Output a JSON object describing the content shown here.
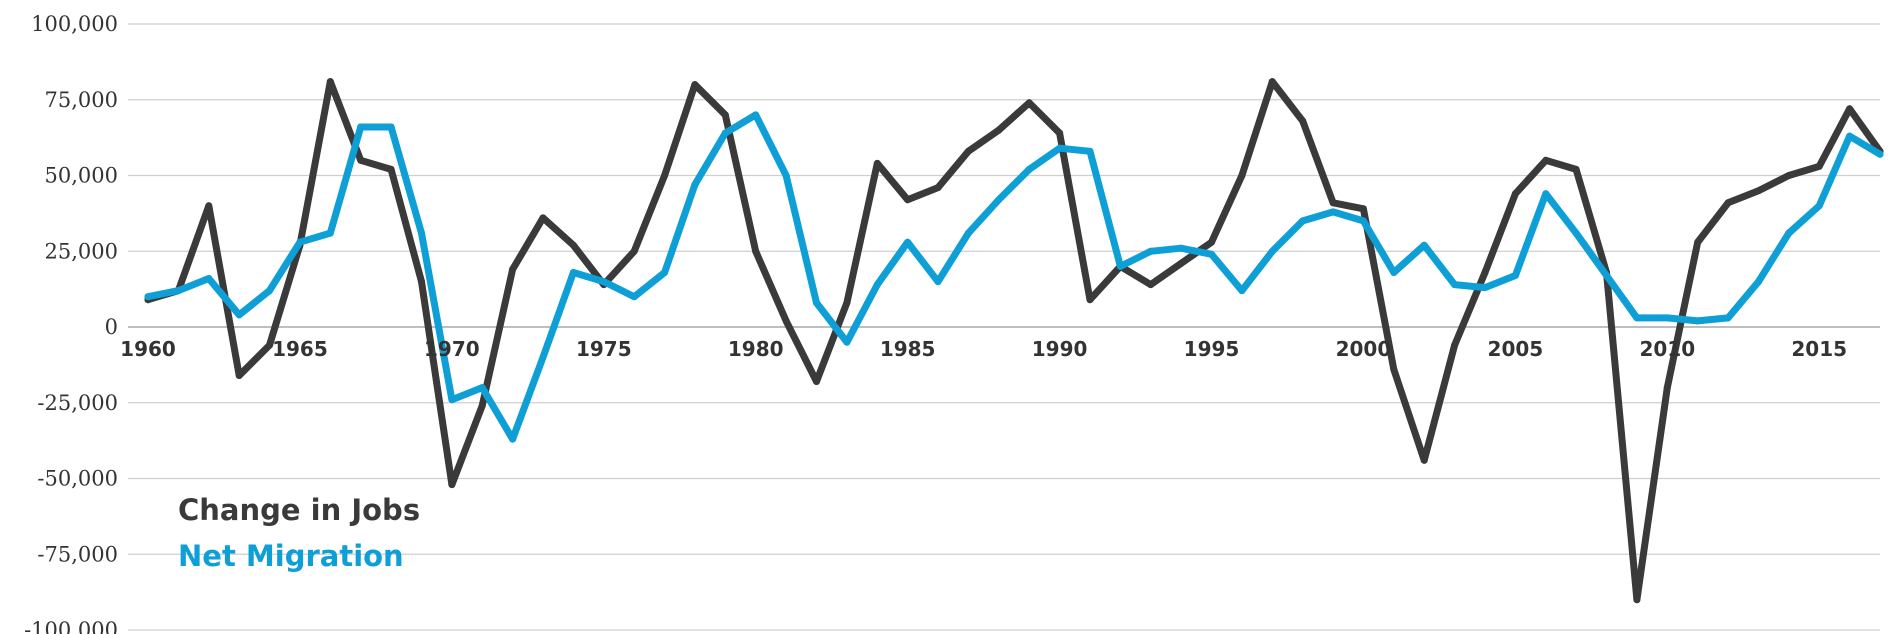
{
  "chart_data": {
    "type": "line",
    "title": "",
    "xlabel": "",
    "ylabel": "",
    "ylim": [
      -100000,
      100000
    ],
    "xlim": [
      1960,
      2017
    ],
    "yticks": [
      100000,
      75000,
      50000,
      25000,
      0,
      -25000,
      -50000,
      -75000,
      -100000
    ],
    "ytick_labels": [
      "100,000",
      "75,000",
      "50,000",
      "25,000",
      "0",
      "-25,000",
      "-50,000",
      "-75,000",
      "-100,000"
    ],
    "xticks": [
      1960,
      1965,
      1970,
      1975,
      1980,
      1985,
      1990,
      1995,
      2000,
      2005,
      2010,
      2015
    ],
    "xtick_labels": [
      "1960",
      "1965",
      "1970",
      "1975",
      "1980",
      "1985",
      "1990",
      "1995",
      "2000",
      "2005",
      "2010",
      "2015"
    ],
    "grid": true,
    "legend_position": "bottom-left",
    "x": [
      1960,
      1961,
      1962,
      1963,
      1964,
      1965,
      1966,
      1967,
      1968,
      1969,
      1970,
      1971,
      1972,
      1973,
      1974,
      1975,
      1976,
      1977,
      1978,
      1979,
      1980,
      1981,
      1982,
      1983,
      1984,
      1985,
      1986,
      1987,
      1988,
      1989,
      1990,
      1991,
      1992,
      1993,
      1994,
      1995,
      1996,
      1997,
      1998,
      1999,
      2000,
      2001,
      2002,
      2003,
      2004,
      2005,
      2006,
      2007,
      2008,
      2009,
      2010,
      2011,
      2012,
      2013,
      2014,
      2015,
      2016,
      2017
    ],
    "series": [
      {
        "name": "Change in Jobs",
        "color": "#3a3a3a",
        "values": [
          9000,
          12000,
          40000,
          -16000,
          -6000,
          27000,
          81000,
          55000,
          52000,
          15000,
          -52000,
          -26000,
          19000,
          36000,
          27000,
          14000,
          25000,
          50000,
          80000,
          70000,
          25000,
          2000,
          -18000,
          8000,
          54000,
          42000,
          46000,
          58000,
          65000,
          74000,
          64000,
          9000,
          20000,
          14000,
          21000,
          28000,
          50000,
          81000,
          68000,
          41000,
          39000,
          -14000,
          -44000,
          -6000,
          18000,
          44000,
          55000,
          52000,
          18000,
          -90000,
          -20000,
          28000,
          41000,
          45000,
          50000,
          53000,
          72000,
          58000
        ]
      },
      {
        "name": "Net Migration",
        "color": "#0d9fd6",
        "values": [
          10000,
          12000,
          16000,
          4000,
          12000,
          28000,
          31000,
          66000,
          66000,
          31000,
          -24000,
          -20000,
          -37000,
          -10000,
          18000,
          15000,
          10000,
          18000,
          47000,
          64000,
          70000,
          50000,
          8000,
          -5000,
          14000,
          28000,
          15000,
          31000,
          42000,
          52000,
          59000,
          58000,
          20000,
          25000,
          26000,
          24000,
          12000,
          25000,
          35000,
          38000,
          35000,
          18000,
          27000,
          14000,
          13000,
          17000,
          44000,
          31000,
          17000,
          3000,
          3000,
          2000,
          3000,
          15000,
          31000,
          40000,
          63000,
          57000
        ]
      }
    ]
  }
}
